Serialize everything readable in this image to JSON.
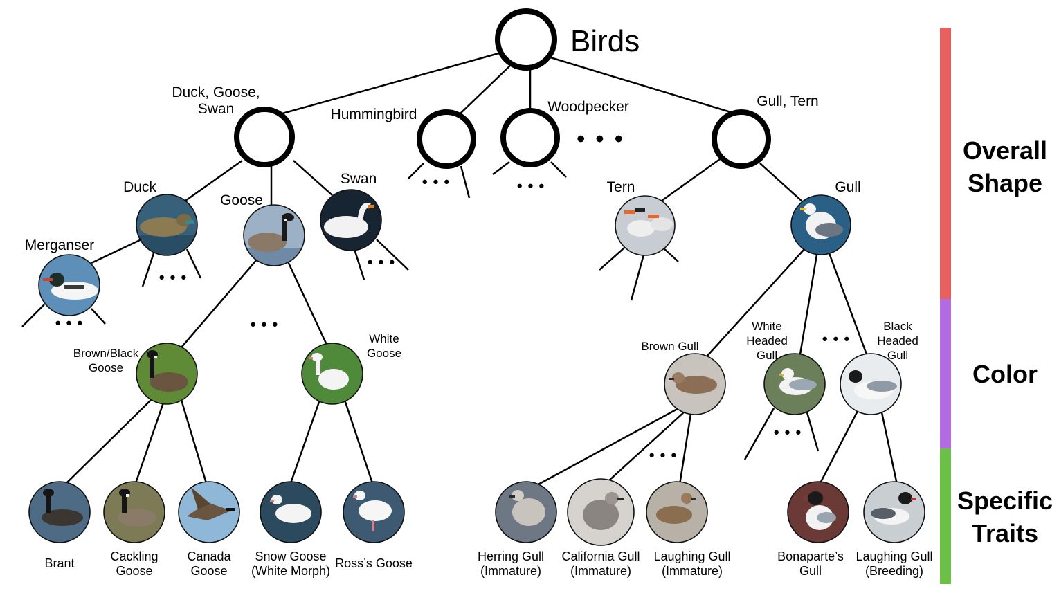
{
  "root": {
    "label": "Birds"
  },
  "shape_groups": [
    {
      "key": "duckgoose",
      "label": [
        "Duck, Goose,",
        "Swan"
      ]
    },
    {
      "key": "hummingbird",
      "label": [
        "Hummingbird"
      ]
    },
    {
      "key": "woodpecker",
      "label": [
        "Woodpecker"
      ]
    },
    {
      "key": "gulltern",
      "label": [
        "Gull, Tern"
      ]
    }
  ],
  "subgroups": {
    "duck": "Duck",
    "goose": "Goose",
    "swan": "Swan",
    "merganser": "Merganser",
    "tern": "Tern",
    "gull": "Gull"
  },
  "color_groups": {
    "brown_black_goose": [
      "Brown/Black",
      "Goose"
    ],
    "white_goose": [
      "White",
      "Goose"
    ],
    "brown_gull": [
      "Brown Gull"
    ],
    "white_headed_gull": [
      "White",
      "Headed",
      "Gull"
    ],
    "black_headed_gull": [
      "Black",
      "Headed",
      "Gull"
    ]
  },
  "leaves": {
    "brant": [
      "Brant"
    ],
    "cackling": [
      "Cackling",
      "Goose"
    ],
    "canada": [
      "Canada",
      "Goose"
    ],
    "snow": [
      "Snow Goose",
      "(White Morph)"
    ],
    "ross": [
      "Ross’s Goose"
    ],
    "herring": [
      "Herring Gull",
      "(Immature)"
    ],
    "california": [
      "California Gull",
      "(Immature)"
    ],
    "laughing_imm": [
      "Laughing Gull",
      "(Immature)"
    ],
    "bonaparte": [
      "Bonaparte’s",
      "Gull"
    ],
    "laughing_breed": [
      "Laughing Gull",
      "(Breeding)"
    ]
  },
  "ellipsis": "• • •",
  "legend": [
    {
      "label": [
        "Overall",
        "Shape"
      ],
      "color": "#e8615f"
    },
    {
      "label": [
        "Color"
      ],
      "color": "#b26be0"
    },
    {
      "label": [
        "Specific",
        "Traits"
      ],
      "color": "#6cbf47"
    }
  ]
}
